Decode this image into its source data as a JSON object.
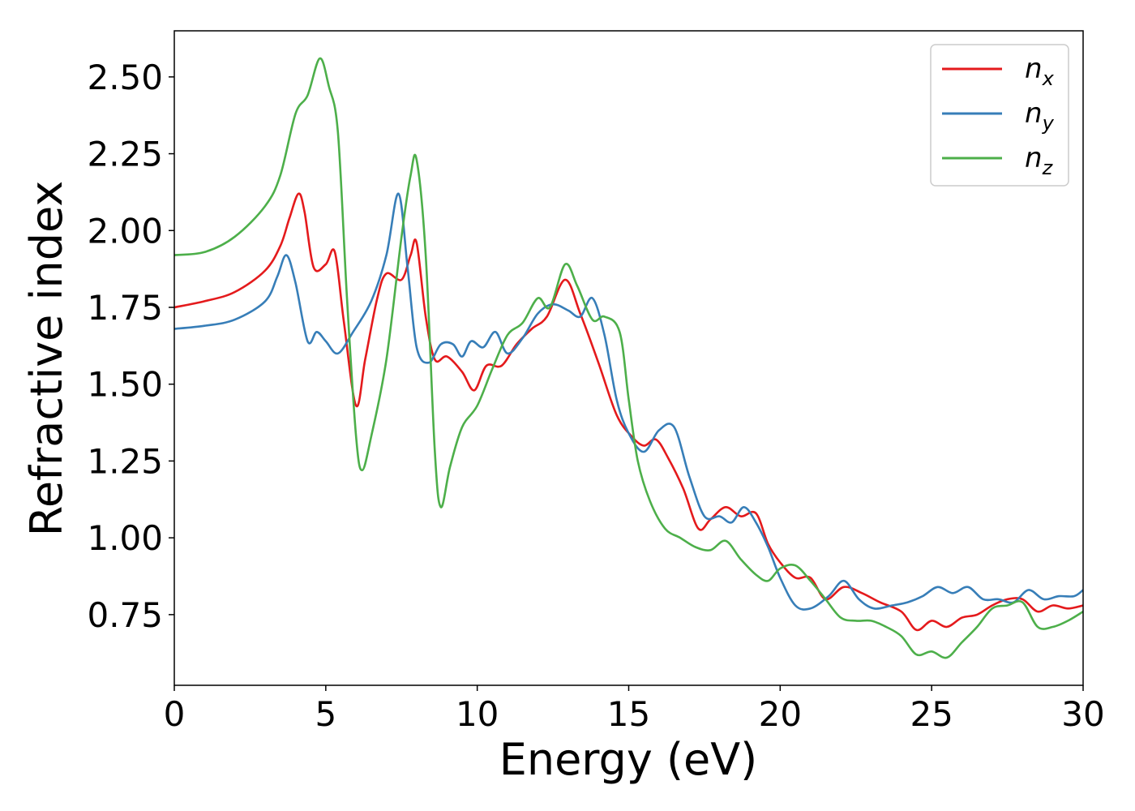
{
  "chart_data": {
    "type": "line",
    "xlabel": "Energy (eV)",
    "ylabel": "Refractive index",
    "xlim": [
      0,
      30
    ],
    "ylim": [
      0.52,
      2.65
    ],
    "xticks": [
      0,
      5,
      10,
      15,
      20,
      25,
      30
    ],
    "xtick_labels": [
      "0",
      "5",
      "10",
      "15",
      "20",
      "25",
      "30"
    ],
    "yticks": [
      0.75,
      1.0,
      1.25,
      1.5,
      1.75,
      2.0,
      2.25,
      2.5
    ],
    "ytick_labels": [
      "0.75",
      "1.00",
      "1.25",
      "1.50",
      "1.75",
      "2.00",
      "2.25",
      "2.50"
    ],
    "grid": false,
    "legend_position": "top-right",
    "series": [
      {
        "name": "n_x",
        "label_main": "n",
        "label_sub": "x",
        "color": "#e41a1c",
        "x": [
          0,
          1,
          2,
          3,
          3.5,
          3.8,
          4.1,
          4.3,
          4.6,
          5.0,
          5.3,
          5.6,
          6.0,
          6.3,
          6.7,
          7.0,
          7.5,
          7.8,
          8.0,
          8.3,
          8.6,
          9.0,
          9.5,
          9.9,
          10.3,
          10.8,
          11.3,
          11.8,
          12.3,
          12.9,
          13.4,
          14.0,
          14.6,
          15.1,
          15.5,
          15.9,
          16.3,
          16.8,
          17.3,
          17.7,
          18.2,
          18.7,
          19.2,
          19.6,
          20.0,
          20.5,
          21.0,
          21.5,
          22.1,
          22.7,
          23.3,
          24.0,
          24.5,
          25.0,
          25.5,
          26.0,
          26.5,
          27.0,
          27.5,
          28.0,
          28.5,
          29.0,
          29.5,
          30.0
        ],
        "y": [
          1.75,
          1.77,
          1.8,
          1.87,
          1.95,
          2.04,
          2.12,
          2.06,
          1.88,
          1.89,
          1.93,
          1.7,
          1.43,
          1.58,
          1.78,
          1.86,
          1.84,
          1.92,
          1.96,
          1.72,
          1.58,
          1.59,
          1.54,
          1.48,
          1.56,
          1.56,
          1.63,
          1.68,
          1.72,
          1.84,
          1.73,
          1.57,
          1.4,
          1.33,
          1.3,
          1.32,
          1.26,
          1.16,
          1.03,
          1.06,
          1.1,
          1.07,
          1.08,
          0.98,
          0.92,
          0.87,
          0.87,
          0.8,
          0.84,
          0.82,
          0.79,
          0.76,
          0.7,
          0.73,
          0.71,
          0.74,
          0.75,
          0.78,
          0.8,
          0.8,
          0.76,
          0.78,
          0.77,
          0.78
        ]
      },
      {
        "name": "n_y",
        "label_main": "n",
        "label_sub": "y",
        "color": "#377eb8",
        "x": [
          0,
          1,
          2,
          3,
          3.4,
          3.7,
          4.0,
          4.4,
          4.7,
          5.0,
          5.4,
          5.9,
          6.5,
          7.0,
          7.4,
          7.7,
          8.0,
          8.4,
          8.8,
          9.2,
          9.5,
          9.8,
          10.2,
          10.6,
          11.0,
          11.5,
          12.0,
          12.5,
          13.0,
          13.4,
          13.8,
          14.2,
          14.6,
          15.0,
          15.5,
          16.0,
          16.5,
          17.0,
          17.5,
          18.0,
          18.4,
          18.8,
          19.2,
          19.6,
          20.0,
          20.5,
          21.0,
          21.6,
          22.1,
          22.6,
          23.1,
          23.7,
          24.2,
          24.7,
          25.2,
          25.7,
          26.2,
          26.7,
          27.2,
          27.7,
          28.2,
          28.7,
          29.2,
          29.7,
          30.0
        ],
        "y": [
          1.68,
          1.69,
          1.71,
          1.77,
          1.85,
          1.92,
          1.83,
          1.64,
          1.67,
          1.64,
          1.6,
          1.67,
          1.77,
          1.92,
          2.12,
          1.88,
          1.62,
          1.57,
          1.63,
          1.63,
          1.59,
          1.64,
          1.62,
          1.67,
          1.6,
          1.65,
          1.73,
          1.76,
          1.74,
          1.72,
          1.78,
          1.66,
          1.45,
          1.34,
          1.28,
          1.35,
          1.36,
          1.2,
          1.07,
          1.07,
          1.05,
          1.1,
          1.05,
          0.97,
          0.87,
          0.78,
          0.77,
          0.81,
          0.86,
          0.8,
          0.77,
          0.78,
          0.79,
          0.81,
          0.84,
          0.82,
          0.84,
          0.8,
          0.8,
          0.79,
          0.83,
          0.8,
          0.81,
          0.81,
          0.83
        ]
      },
      {
        "name": "n_z",
        "label_main": "n",
        "label_sub": "z",
        "color": "#4daf4a",
        "x": [
          0,
          1,
          2,
          3,
          3.5,
          4.0,
          4.4,
          4.8,
          5.1,
          5.4,
          5.7,
          6.0,
          6.2,
          6.5,
          7.0,
          7.5,
          7.8,
          8.0,
          8.3,
          8.6,
          8.8,
          9.1,
          9.5,
          10.0,
          10.5,
          11.0,
          11.5,
          12.0,
          12.4,
          12.9,
          13.3,
          13.8,
          14.2,
          14.7,
          15.0,
          15.3,
          15.7,
          16.2,
          16.7,
          17.2,
          17.7,
          18.2,
          18.7,
          19.2,
          19.6,
          20.0,
          20.5,
          21.0,
          21.5,
          22.0,
          22.5,
          23.0,
          23.5,
          24.0,
          24.5,
          25.0,
          25.5,
          26.0,
          26.5,
          27.0,
          27.5,
          28.0,
          28.5,
          29.0,
          29.5,
          30.0
        ],
        "y": [
          1.92,
          1.93,
          1.98,
          2.08,
          2.18,
          2.38,
          2.44,
          2.56,
          2.47,
          2.32,
          1.78,
          1.33,
          1.22,
          1.33,
          1.58,
          1.98,
          2.18,
          2.23,
          1.92,
          1.28,
          1.1,
          1.23,
          1.36,
          1.43,
          1.55,
          1.66,
          1.7,
          1.78,
          1.75,
          1.89,
          1.82,
          1.71,
          1.72,
          1.67,
          1.45,
          1.25,
          1.12,
          1.03,
          1.0,
          0.97,
          0.96,
          0.99,
          0.93,
          0.88,
          0.86,
          0.9,
          0.91,
          0.86,
          0.8,
          0.74,
          0.73,
          0.73,
          0.71,
          0.68,
          0.62,
          0.63,
          0.61,
          0.66,
          0.71,
          0.77,
          0.78,
          0.79,
          0.71,
          0.71,
          0.73,
          0.76
        ]
      }
    ]
  }
}
